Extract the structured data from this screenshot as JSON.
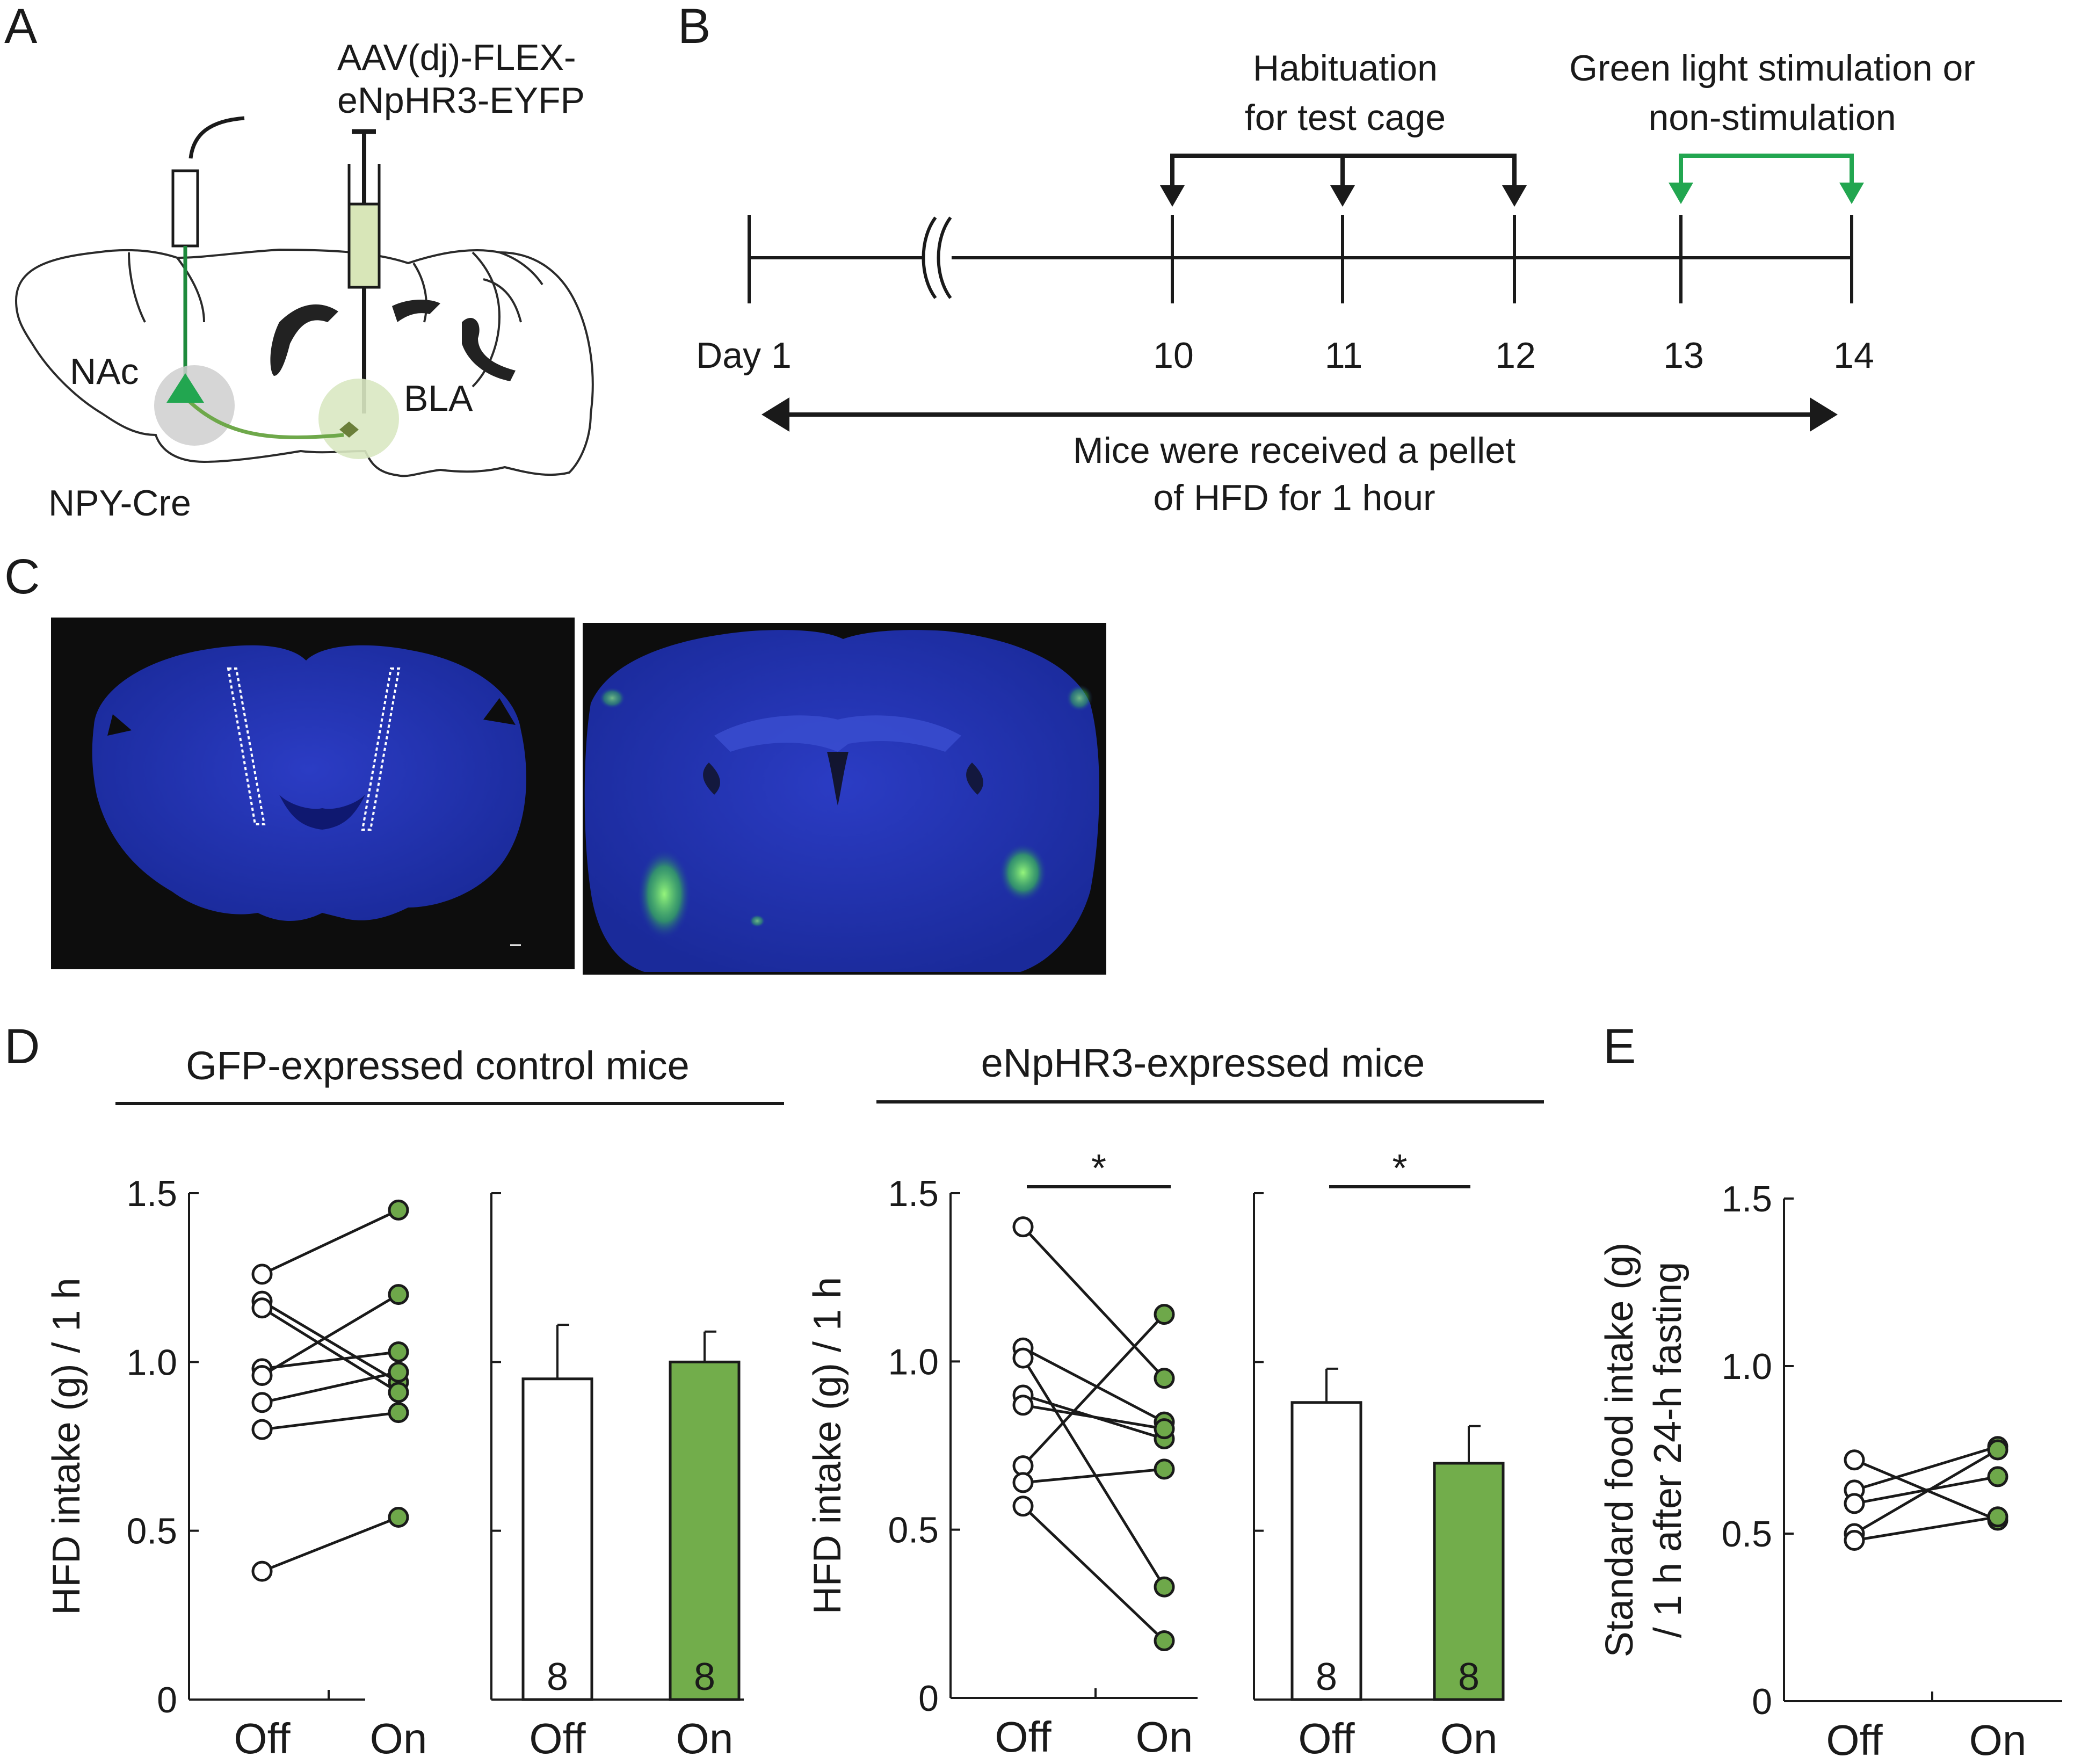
{
  "panels": {
    "A": {
      "label": "A",
      "virus": [
        "AAV(dj)-FLEX-",
        "eNpHR3-EYFP"
      ],
      "region_nac": "NAc",
      "region_bla": "BLA",
      "mouse_line": "NPY-Cre"
    },
    "B": {
      "label": "B",
      "habituation": [
        "Habituation",
        "for test cage"
      ],
      "stimulation": [
        "Green light stimulation or",
        "non-stimulation"
      ],
      "day_labels": [
        "Day 1",
        "10",
        "11",
        "12",
        "13",
        "14"
      ],
      "pellet_note": [
        "Mice were received a pellet",
        "of HFD for 1 hour"
      ]
    },
    "C": {
      "label": "C"
    },
    "D": {
      "label": "D",
      "group_gfp": "GFP-expressed control mice",
      "group_enphr3": "eNpHR3-expressed mice",
      "sig_marker": "*"
    },
    "E": {
      "label": "E"
    }
  },
  "colors": {
    "on_green": "#6ea84a",
    "bar_green": "#72ad4b",
    "arrow_green": "#22a650",
    "fiber_green": "#1e8a3c",
    "brain_blue": "#1c2fa6",
    "bg_dark": "#0d0d0d"
  },
  "chart_data": [
    {
      "type": "line",
      "panel": "D",
      "subtitle": "GFP-expressed control mice",
      "ylabel": "HFD intake (g) / 1 h",
      "ylim": [
        0,
        1.5
      ],
      "yticks": [
        "0",
        "0.5",
        "1.0",
        "1.5"
      ],
      "categories": [
        "Off",
        "On"
      ],
      "pairs": [
        [
          1.26,
          1.45
        ],
        [
          1.18,
          0.94
        ],
        [
          1.16,
          0.91
        ],
        [
          0.98,
          1.03
        ],
        [
          0.96,
          1.2
        ],
        [
          0.88,
          0.97
        ],
        [
          0.8,
          0.85
        ],
        [
          0.38,
          0.54
        ]
      ]
    },
    {
      "type": "bar",
      "panel": "D",
      "subtitle": "GFP-expressed control mice",
      "ylim": [
        0,
        1.5
      ],
      "categories": [
        "Off",
        "On"
      ],
      "values": [
        0.95,
        1.0
      ],
      "errors": [
        0.16,
        0.09
      ],
      "n": [
        "8",
        "8"
      ]
    },
    {
      "type": "line",
      "panel": "D",
      "subtitle": "eNpHR3-expressed mice",
      "ylabel": "HFD intake (g) / 1 h",
      "ylim": [
        0,
        1.5
      ],
      "yticks": [
        "0",
        "0.5",
        "1.0",
        "1.5"
      ],
      "categories": [
        "Off",
        "On"
      ],
      "pairs": [
        [
          1.4,
          0.95
        ],
        [
          1.04,
          0.82
        ],
        [
          1.01,
          0.33
        ],
        [
          0.9,
          0.77
        ],
        [
          0.87,
          0.8
        ],
        [
          0.69,
          1.14
        ],
        [
          0.64,
          0.68
        ],
        [
          0.57,
          0.17
        ]
      ],
      "significance": "*"
    },
    {
      "type": "bar",
      "panel": "D",
      "subtitle": "eNpHR3-expressed mice",
      "ylim": [
        0,
        1.5
      ],
      "categories": [
        "Off",
        "On"
      ],
      "values": [
        0.88,
        0.7
      ],
      "errors": [
        0.1,
        0.11
      ],
      "n": [
        "8",
        "8"
      ],
      "significance": "*"
    },
    {
      "type": "line",
      "panel": "E",
      "ylabel": "Standard food intake (g) / 1 h after 24-h fasting",
      "ylabel_lines": [
        "Standard food intake (g)",
        "/ 1 h after 24-h fasting"
      ],
      "ylim": [
        0,
        1.5
      ],
      "yticks": [
        "0",
        "0.5",
        "1.0",
        "1.5"
      ],
      "categories": [
        "Off",
        "On"
      ],
      "pairs": [
        [
          0.72,
          0.54
        ],
        [
          0.63,
          0.76
        ],
        [
          0.59,
          0.67
        ],
        [
          0.5,
          0.75
        ],
        [
          0.48,
          0.55
        ]
      ]
    }
  ]
}
